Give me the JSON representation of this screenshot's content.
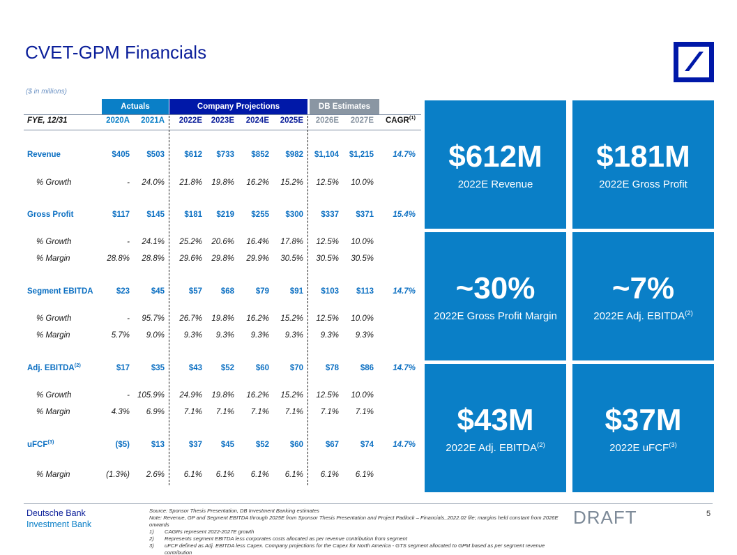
{
  "title": "CVET-GPM Financials",
  "subtitle": "($ in millions)",
  "brand": {
    "primary": "#0018a8",
    "accent": "#0a7fc7",
    "muted": "#8a96a3"
  },
  "table": {
    "bands": {
      "actuals": "Actuals",
      "company": "Company Projections",
      "db": "DB Estimates"
    },
    "header_label": "FYE, 12/31",
    "columns": [
      "2020A",
      "2021A",
      "2022E",
      "2023E",
      "2024E",
      "2025E",
      "2026E",
      "2027E",
      "CAGR"
    ],
    "cagr_note": "(1)",
    "rows": [
      {
        "label": "Revenue",
        "note": "",
        "type": "main",
        "values": [
          "$405",
          "$503",
          "$612",
          "$733",
          "$852",
          "$982",
          "$1,104",
          "$1,215",
          "14.7%"
        ]
      },
      {
        "label": "% Growth",
        "note": "",
        "type": "sub",
        "values": [
          "-",
          "24.0%",
          "21.8%",
          "19.8%",
          "16.2%",
          "15.2%",
          "12.5%",
          "10.0%",
          ""
        ]
      },
      {
        "label": "Gross Profit",
        "note": "",
        "type": "main",
        "values": [
          "$117",
          "$145",
          "$181",
          "$219",
          "$255",
          "$300",
          "$337",
          "$371",
          "15.4%"
        ]
      },
      {
        "label": "% Growth",
        "note": "",
        "type": "sub",
        "values": [
          "-",
          "24.1%",
          "25.2%",
          "20.6%",
          "16.4%",
          "17.8%",
          "12.5%",
          "10.0%",
          ""
        ]
      },
      {
        "label": "% Margin",
        "note": "",
        "type": "sub",
        "values": [
          "28.8%",
          "28.8%",
          "29.6%",
          "29.8%",
          "29.9%",
          "30.5%",
          "30.5%",
          "30.5%",
          ""
        ]
      },
      {
        "label": "Segment EBITDA",
        "note": "",
        "type": "main",
        "values": [
          "$23",
          "$45",
          "$57",
          "$68",
          "$79",
          "$91",
          "$103",
          "$113",
          "14.7%"
        ]
      },
      {
        "label": "% Growth",
        "note": "",
        "type": "sub",
        "values": [
          "-",
          "95.7%",
          "26.7%",
          "19.8%",
          "16.2%",
          "15.2%",
          "12.5%",
          "10.0%",
          ""
        ]
      },
      {
        "label": "% Margin",
        "note": "",
        "type": "sub",
        "values": [
          "5.7%",
          "9.0%",
          "9.3%",
          "9.3%",
          "9.3%",
          "9.3%",
          "9.3%",
          "9.3%",
          ""
        ]
      },
      {
        "label": "Adj. EBITDA",
        "note": "(2)",
        "type": "main",
        "values": [
          "$17",
          "$35",
          "$43",
          "$52",
          "$60",
          "$70",
          "$78",
          "$86",
          "14.7%"
        ]
      },
      {
        "label": "% Growth",
        "note": "",
        "type": "sub",
        "values": [
          "-",
          "105.9%",
          "24.9%",
          "19.8%",
          "16.2%",
          "15.2%",
          "12.5%",
          "10.0%",
          ""
        ]
      },
      {
        "label": "% Margin",
        "note": "",
        "type": "sub",
        "values": [
          "4.3%",
          "6.9%",
          "7.1%",
          "7.1%",
          "7.1%",
          "7.1%",
          "7.1%",
          "7.1%",
          ""
        ]
      },
      {
        "label": "uFCF",
        "note": "(3)",
        "type": "main",
        "values": [
          "($5)",
          "$13",
          "$37",
          "$45",
          "$52",
          "$60",
          "$67",
          "$74",
          "14.7%"
        ]
      },
      {
        "label": "% Margin",
        "note": "",
        "type": "sub",
        "values": [
          "(1.3%)",
          "2.6%",
          "6.1%",
          "6.1%",
          "6.1%",
          "6.1%",
          "6.1%",
          "6.1%",
          ""
        ]
      }
    ]
  },
  "tiles": [
    {
      "value": "$612M",
      "caption": "2022E Revenue",
      "note": ""
    },
    {
      "value": "$181M",
      "caption": "2022E Gross Profit",
      "note": ""
    },
    {
      "value": "~30%",
      "caption": "2022E Gross Profit Margin",
      "note": ""
    },
    {
      "value": "~7%",
      "caption": "2022E Adj. EBITDA",
      "note": "(2)"
    },
    {
      "value": "$43M",
      "caption": "2022E Adj. EBITDA",
      "note": "(2)"
    },
    {
      "value": "$37M",
      "caption": "2022E uFCF",
      "note": "(3)"
    }
  ],
  "footer": {
    "bank_name": "Deutsche Bank",
    "division": "Investment Bank",
    "source": "Source: Sponsor Thesis Presentation, DB Investment Banking estimates",
    "note": "Note: Revenue, GP and Segment EBITDA through 2025E from Sponsor Thesis Presentation and Project Padlock – Financials_2022.02 file; margins held constant from 2026E onwards",
    "footnotes": [
      {
        "num": "1)",
        "text": "CAGRs represent 2022-2027E growth"
      },
      {
        "num": "2)",
        "text": "Represents segment EBITDA less corporates costs allocated as per revenue contribution from segment"
      },
      {
        "num": "3)",
        "text": "uFCF defined as Adj. EBITDA less Capex. Company projections for the Capex for North America - GTS segment allocated to GPM based as per segment revenue contribution"
      }
    ],
    "draft": "DRAFT",
    "page": "5"
  }
}
